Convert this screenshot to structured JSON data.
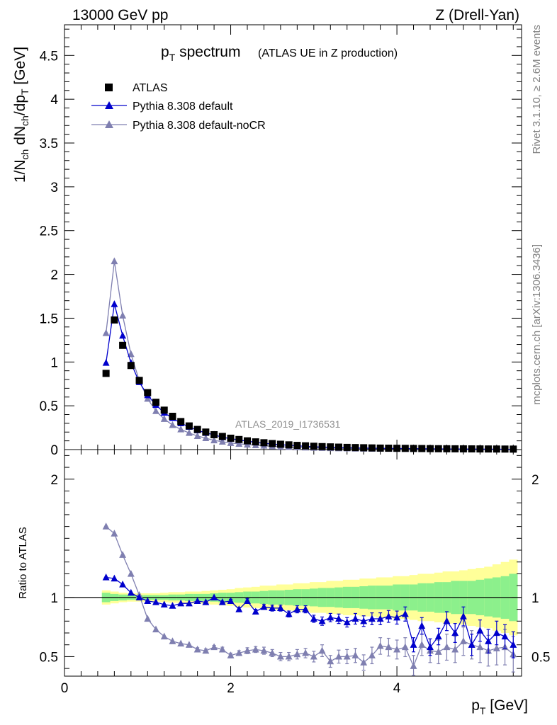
{
  "header": {
    "energy": "13000 GeV pp",
    "process": "Z (Drell-Yan)"
  },
  "side_labels": {
    "rivet": "Rivet 3.1.10, ≥ 2.6M events",
    "mcplots": "mcplots.cern.ch [arXiv:1306.3436]"
  },
  "title": {
    "main_p": "p",
    "main_sub": "T",
    "main_rest": " spectrum",
    "subtitle": "(ATLAS UE in Z production)"
  },
  "watermark": "ATLAS_2019_I1736531",
  "colors": {
    "data": "#000000",
    "default": "#0000cc",
    "nocr": "#7f7fb0",
    "band_inner": "#8cf08c",
    "band_outer": "#ffff99"
  },
  "chart_data": [
    {
      "type": "scatter",
      "panel": "main",
      "ylabel": "1/N_ch dN_ch/dp_T [GeV]",
      "ylabel_parts": {
        "a": "1/N",
        "a_sub": "ch",
        "b": " dN",
        "b_sub": "ch",
        "c": "/dp",
        "c_sub": "T",
        "d": " [GeV]"
      },
      "xlim": [
        0,
        5.5
      ],
      "ylim": [
        0,
        4.85
      ],
      "yticks": [
        0,
        0.5,
        1,
        1.5,
        2,
        2.5,
        3,
        3.5,
        4,
        4.5
      ],
      "ytick_labels": [
        "0",
        "0.5",
        "1",
        "1.5",
        "2",
        "2.5",
        "3",
        "3.5",
        "4",
        "4.5"
      ],
      "x": [
        0.5,
        0.6,
        0.7,
        0.8,
        0.9,
        1.0,
        1.1,
        1.2,
        1.3,
        1.4,
        1.5,
        1.6,
        1.7,
        1.8,
        1.9,
        2.0,
        2.1,
        2.2,
        2.3,
        2.4,
        2.5,
        2.6,
        2.7,
        2.8,
        2.9,
        3.0,
        3.1,
        3.2,
        3.3,
        3.4,
        3.5,
        3.6,
        3.7,
        3.8,
        3.9,
        4.0,
        4.1,
        4.2,
        4.3,
        4.4,
        4.5,
        4.6,
        4.7,
        4.8,
        4.9,
        5.0,
        5.1,
        5.2,
        5.3,
        5.4
      ],
      "series": [
        {
          "name": "ATLAS",
          "marker": "square",
          "values": [
            0.87,
            1.48,
            1.19,
            0.96,
            0.79,
            0.65,
            0.54,
            0.45,
            0.38,
            0.32,
            0.27,
            0.23,
            0.2,
            0.17,
            0.15,
            0.13,
            0.115,
            0.1,
            0.088,
            0.078,
            0.069,
            0.061,
            0.054,
            0.048,
            0.043,
            0.038,
            0.034,
            0.031,
            0.028,
            0.025,
            0.023,
            0.021,
            0.019,
            0.017,
            0.016,
            0.015,
            0.014,
            0.013,
            0.012,
            0.011,
            0.01,
            0.0095,
            0.009,
            0.0085,
            0.008,
            0.0075,
            0.007,
            0.0065,
            0.006,
            0.0055
          ]
        },
        {
          "name": "Pythia 8.308 default",
          "marker": "triangle",
          "values": [
            0.99,
            1.66,
            1.3,
            0.99,
            0.77,
            0.62,
            0.51,
            0.42,
            0.36,
            0.3,
            0.26,
            0.22,
            0.19,
            0.17,
            0.14,
            0.125,
            0.11,
            0.095,
            0.083,
            0.072,
            0.063,
            0.055,
            0.049,
            0.044,
            0.037,
            0.032,
            0.029,
            0.026,
            0.023,
            0.021,
            0.019,
            0.017,
            0.016,
            0.015,
            0.014,
            0.013,
            0.012,
            0.011,
            0.01,
            0.009,
            0.008,
            0.0075,
            0.007,
            0.0068,
            0.006,
            0.0055,
            0.005,
            0.0045,
            0.004,
            0.0035
          ]
        },
        {
          "name": "Pythia 8.308 default-noCR",
          "marker": "triangle",
          "values": [
            1.33,
            2.15,
            1.53,
            1.09,
            0.79,
            0.58,
            0.44,
            0.35,
            0.28,
            0.23,
            0.19,
            0.155,
            0.13,
            0.105,
            0.09,
            0.075,
            0.066,
            0.057,
            0.05,
            0.044,
            0.038,
            0.033,
            0.029,
            0.026,
            0.023,
            0.02,
            0.018,
            0.016,
            0.014,
            0.013,
            0.011,
            0.01,
            0.0095,
            0.009,
            0.0085,
            0.008,
            0.0075,
            0.007,
            0.0065,
            0.006,
            0.0055,
            0.005,
            0.0045,
            0.0042,
            0.004,
            0.0038,
            0.0035,
            0.0032,
            0.003,
            0.0028
          ]
        }
      ],
      "legend": {
        "placement": "top-left",
        "entries": [
          "ATLAS",
          "Pythia 8.308 default",
          "Pythia 8.308 default-noCR"
        ]
      }
    },
    {
      "type": "scatter",
      "panel": "ratio",
      "ylabel": "Ratio to ATLAS",
      "xlabel": "p_T [GeV]",
      "xlabel_parts": {
        "p": "p",
        "sub": "T",
        "rest": " [GeV]"
      },
      "xlim": [
        0,
        5.5
      ],
      "ylim": [
        0.335,
        2.25
      ],
      "xticks": [
        0,
        2,
        4
      ],
      "xtick_labels": [
        "0",
        "2",
        "4"
      ],
      "yticks": [
        0.5,
        1,
        2
      ],
      "ytick_labels": [
        "0.5",
        "1",
        "2"
      ],
      "x": [
        0.5,
        0.6,
        0.7,
        0.8,
        0.9,
        1.0,
        1.1,
        1.2,
        1.3,
        1.4,
        1.5,
        1.6,
        1.7,
        1.8,
        1.9,
        2.0,
        2.1,
        2.2,
        2.3,
        2.4,
        2.5,
        2.6,
        2.7,
        2.8,
        2.9,
        3.0,
        3.1,
        3.2,
        3.3,
        3.4,
        3.5,
        3.6,
        3.7,
        3.8,
        3.9,
        4.0,
        4.1,
        4.2,
        4.3,
        4.4,
        4.5,
        4.6,
        4.7,
        4.8,
        4.9,
        5.0,
        5.1,
        5.2,
        5.3,
        5.4
      ],
      "band_inner": [
        0.04,
        0.03,
        0.025,
        0.02,
        0.02,
        0.02,
        0.02,
        0.02,
        0.025,
        0.025,
        0.03,
        0.03,
        0.03,
        0.035,
        0.04,
        0.04,
        0.045,
        0.05,
        0.05,
        0.055,
        0.06,
        0.06,
        0.065,
        0.07,
        0.07,
        0.075,
        0.08,
        0.08,
        0.085,
        0.09,
        0.09,
        0.095,
        0.1,
        0.1,
        0.1,
        0.11,
        0.11,
        0.11,
        0.12,
        0.12,
        0.13,
        0.13,
        0.14,
        0.14,
        0.14,
        0.15,
        0.16,
        0.17,
        0.18,
        0.2
      ],
      "band_outer": [
        0.06,
        0.05,
        0.04,
        0.035,
        0.035,
        0.035,
        0.035,
        0.04,
        0.045,
        0.045,
        0.05,
        0.05,
        0.055,
        0.06,
        0.065,
        0.07,
        0.08,
        0.085,
        0.09,
        0.1,
        0.1,
        0.11,
        0.11,
        0.12,
        0.12,
        0.13,
        0.13,
        0.14,
        0.14,
        0.15,
        0.15,
        0.16,
        0.16,
        0.17,
        0.17,
        0.18,
        0.18,
        0.19,
        0.2,
        0.2,
        0.21,
        0.22,
        0.22,
        0.23,
        0.24,
        0.25,
        0.26,
        0.28,
        0.3,
        0.32
      ],
      "series": [
        {
          "name": "Pythia 8.308 default",
          "values": [
            1.17,
            1.16,
            1.11,
            1.04,
            1.0,
            0.97,
            0.96,
            0.94,
            0.93,
            0.95,
            0.95,
            0.97,
            0.96,
            1.0,
            0.96,
            0.97,
            0.9,
            0.97,
            0.88,
            0.92,
            0.91,
            0.91,
            0.86,
            0.9,
            0.9,
            0.82,
            0.8,
            0.83,
            0.82,
            0.79,
            0.82,
            0.8,
            0.82,
            0.82,
            0.84,
            0.83,
            0.86,
            0.6,
            0.76,
            0.58,
            0.67,
            0.8,
            0.7,
            0.84,
            0.6,
            0.72,
            0.63,
            0.7,
            0.67,
            0.6
          ],
          "errors": [
            0.01,
            0.01,
            0.01,
            0.01,
            0.01,
            0.01,
            0.01,
            0.01,
            0.01,
            0.01,
            0.01,
            0.01,
            0.01,
            0.01,
            0.01,
            0.015,
            0.015,
            0.02,
            0.02,
            0.02,
            0.025,
            0.025,
            0.025,
            0.03,
            0.03,
            0.03,
            0.035,
            0.035,
            0.04,
            0.04,
            0.045,
            0.045,
            0.05,
            0.05,
            0.05,
            0.055,
            0.06,
            0.06,
            0.07,
            0.07,
            0.07,
            0.08,
            0.08,
            0.08,
            0.09,
            0.09,
            0.1,
            0.1,
            0.1,
            0.11
          ]
        },
        {
          "name": "Pythia 8.308 default-noCR",
          "values": [
            1.6,
            1.54,
            1.36,
            1.2,
            1.02,
            0.82,
            0.73,
            0.67,
            0.63,
            0.61,
            0.6,
            0.56,
            0.55,
            0.58,
            0.56,
            0.51,
            0.53,
            0.55,
            0.56,
            0.55,
            0.53,
            0.5,
            0.5,
            0.52,
            0.53,
            0.5,
            0.55,
            0.46,
            0.5,
            0.5,
            0.51,
            0.45,
            0.51,
            0.59,
            0.58,
            0.56,
            0.58,
            0.42,
            0.6,
            0.55,
            0.54,
            0.58,
            0.56,
            0.63,
            0.6,
            0.58,
            0.55,
            0.57,
            0.58,
            0.52
          ],
          "errors": [
            0.01,
            0.01,
            0.01,
            0.01,
            0.01,
            0.01,
            0.01,
            0.01,
            0.01,
            0.01,
            0.01,
            0.015,
            0.015,
            0.015,
            0.02,
            0.02,
            0.02,
            0.025,
            0.025,
            0.03,
            0.03,
            0.035,
            0.035,
            0.04,
            0.04,
            0.045,
            0.05,
            0.05,
            0.055,
            0.06,
            0.06,
            0.065,
            0.07,
            0.07,
            0.075,
            0.08,
            0.08,
            0.09,
            0.09,
            0.1,
            0.1,
            0.11,
            0.11,
            0.12,
            0.12,
            0.13,
            0.13,
            0.14,
            0.15,
            0.15
          ]
        }
      ]
    }
  ]
}
